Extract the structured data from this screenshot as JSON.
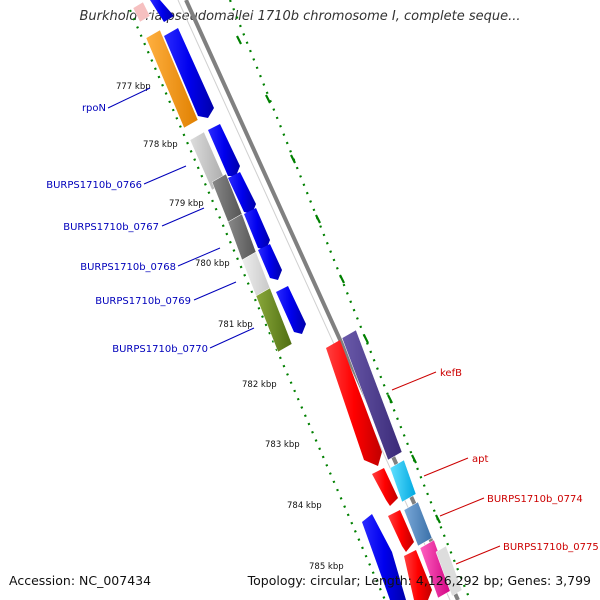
{
  "title": "Burkholderia pseudomallei 1710b chromosome I, complete seque...",
  "footer": {
    "accession": "Accession: NC_007434",
    "topology": "Topology: circular; Length: 4,126,292 bp; Genes: 3,799"
  },
  "colors": {
    "backbone": "#808080",
    "forward_strand": "#0000ee",
    "reverse_strand": "#ff0000",
    "tick_dots": "#008000",
    "left_label": "#0000bb",
    "right_label": "#cc0000"
  },
  "ticks": [
    "777 kbp",
    "778 kbp",
    "779 kbp",
    "780 kbp",
    "781 kbp",
    "782 kbp",
    "783 kbp",
    "784 kbp",
    "785 kbp"
  ],
  "gene_labels_left": [
    "rpoN",
    "BURPS1710b_0766",
    "BURPS1710b_0767",
    "BURPS1710b_0768",
    "BURPS1710b_0769",
    "BURPS1710b_0770"
  ],
  "gene_labels_right": [
    "kefB",
    "apt",
    "BURPS1710b_0774",
    "BURPS1710b_0775"
  ]
}
